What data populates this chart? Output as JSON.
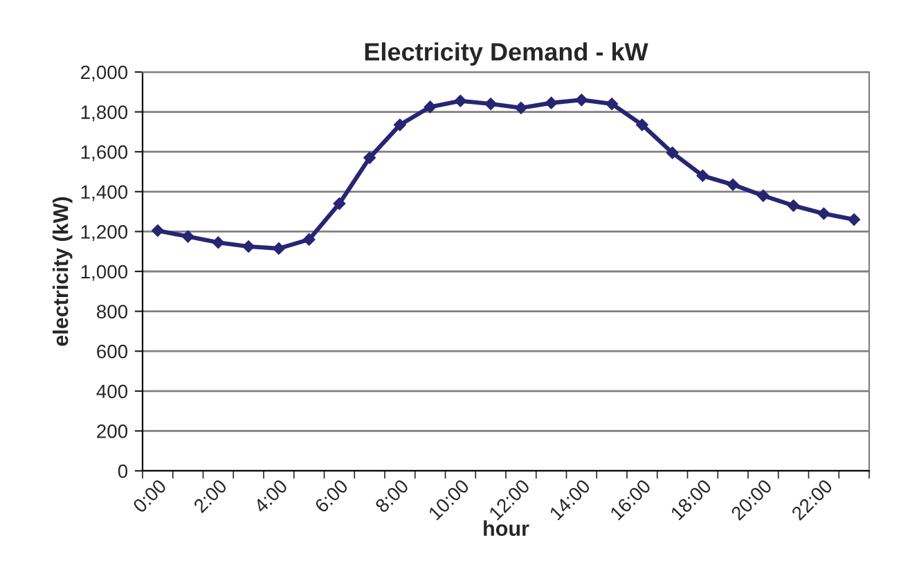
{
  "chart_data": {
    "type": "line",
    "title": "Electricity Demand - kW",
    "xlabel": "hour",
    "ylabel": "electricity (kW)",
    "categories": [
      "0:00",
      null,
      "2:00",
      null,
      "4:00",
      null,
      "6:00",
      null,
      "8:00",
      null,
      "10:00",
      null,
      "12:00",
      null,
      "14:00",
      null,
      "16:00",
      null,
      "18:00",
      null,
      "20:00",
      null,
      "22:00",
      null
    ],
    "series": [
      {
        "color": "#262673",
        "values": [
          1205,
          1175,
          1145,
          1125,
          1115,
          1160,
          1340,
          1570,
          1735,
          1825,
          1855,
          1840,
          1820,
          1845,
          1860,
          1840,
          1735,
          1595,
          1480,
          1435,
          1380,
          1330,
          1290,
          1260
        ]
      }
    ],
    "ylim": [
      0,
      2000
    ],
    "yticks": [
      {
        "value": 0,
        "label": "0"
      },
      {
        "value": 200,
        "label": "200"
      },
      {
        "value": 400,
        "label": "400"
      },
      {
        "value": 600,
        "label": "600"
      },
      {
        "value": 800,
        "label": "800"
      },
      {
        "value": 1000,
        "label": "1,000"
      },
      {
        "value": 1200,
        "label": "1,200"
      },
      {
        "value": 1400,
        "label": "1,400"
      },
      {
        "value": 1600,
        "label": "1,600"
      },
      {
        "value": 1800,
        "label": "1,800"
      },
      {
        "value": 2000,
        "label": "2,000"
      }
    ],
    "grid": "y",
    "marker": "diamond",
    "line_style": "solid",
    "legend": false
  }
}
